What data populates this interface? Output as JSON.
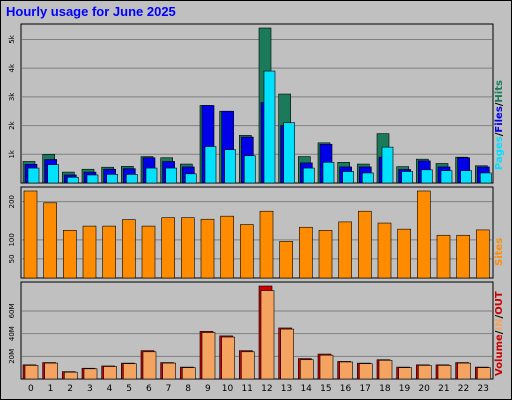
{
  "title": "Hourly usage for June 2025",
  "colors": {
    "background": "#c0c0c0",
    "plot_bg": "#c0c0c0",
    "grid": "#808080",
    "title": "#0000ff",
    "pages": "#00e0ff",
    "files": "#0000e8",
    "hits": "#1b7a5a",
    "sites": "#ff8c00",
    "volume_in": "#f4a460",
    "volume_out": "#cc0000",
    "axis_text": "#000000"
  },
  "chart_data": [
    {
      "type": "bar",
      "panel": "top",
      "categories": [
        "0",
        "1",
        "2",
        "3",
        "4",
        "5",
        "6",
        "7",
        "8",
        "9",
        "10",
        "11",
        "12",
        "13",
        "14",
        "15",
        "16",
        "17",
        "18",
        "19",
        "20",
        "21",
        "22",
        "23"
      ],
      "series": [
        {
          "name": "Hits",
          "values": [
            750,
            1000,
            380,
            480,
            550,
            580,
            920,
            880,
            660,
            2700,
            2500,
            1660,
            5400,
            3100,
            920,
            1400,
            720,
            660,
            1720,
            570,
            830,
            680,
            900,
            600
          ]
        },
        {
          "name": "Files",
          "values": [
            650,
            820,
            280,
            380,
            480,
            500,
            880,
            750,
            560,
            2700,
            2500,
            1600,
            2800,
            2000,
            700,
            1350,
            560,
            560,
            900,
            470,
            770,
            560,
            880,
            560
          ]
        },
        {
          "name": "Pages",
          "values": [
            520,
            640,
            200,
            280,
            300,
            300,
            520,
            520,
            320,
            1270,
            1160,
            950,
            3900,
            2100,
            520,
            720,
            400,
            350,
            1250,
            400,
            460,
            430,
            430,
            350
          ]
        }
      ],
      "ylabel": "Pages / Files / Hits",
      "yticks": [
        "1k",
        "2k",
        "3k",
        "4k",
        "5k"
      ],
      "ylim": [
        0,
        5400
      ]
    },
    {
      "type": "bar",
      "panel": "middle",
      "categories": [
        "0",
        "1",
        "2",
        "3",
        "4",
        "5",
        "6",
        "7",
        "8",
        "9",
        "10",
        "11",
        "12",
        "13",
        "14",
        "15",
        "16",
        "17",
        "18",
        "19",
        "20",
        "21",
        "22",
        "23"
      ],
      "series": [
        {
          "name": "Sites",
          "values": [
            228,
            197,
            125,
            136,
            136,
            153,
            136,
            158,
            158,
            154,
            162,
            140,
            175,
            96,
            133,
            125,
            147,
            175,
            144,
            128,
            228,
            112,
            112,
            126
          ]
        }
      ],
      "ylabel": "Sites",
      "yticks": [
        "50",
        "100",
        "200"
      ],
      "ylim": [
        0,
        228
      ]
    },
    {
      "type": "bar",
      "panel": "bottom",
      "categories": [
        "0",
        "1",
        "2",
        "3",
        "4",
        "5",
        "6",
        "7",
        "8",
        "9",
        "10",
        "11",
        "12",
        "13",
        "14",
        "15",
        "16",
        "17",
        "18",
        "19",
        "20",
        "21",
        "22",
        "23"
      ],
      "series": [
        {
          "name": "IN",
          "values": [
            12.0,
            14.0,
            6.0,
            9.0,
            11.0,
            13.5,
            24.0,
            14.0,
            10.0,
            41.0,
            37.0,
            24.0,
            78.0,
            44.0,
            17.0,
            21.0,
            15.0,
            13.5,
            16.5,
            10.0,
            12.0,
            12.0,
            14.0,
            10.0
          ]
        },
        {
          "name": "OUT",
          "values": [
            12.5,
            14.5,
            6.5,
            9.5,
            11.5,
            14.0,
            25.0,
            14.5,
            10.5,
            42.0,
            38.0,
            25.0,
            82.0,
            45.0,
            18.0,
            22.0,
            15.5,
            14.0,
            17.0,
            10.5,
            12.5,
            12.5,
            14.5,
            10.5
          ]
        }
      ],
      "ylabel": "Volume / IN / OUT",
      "yticks": [
        "20M",
        "40M",
        "60M"
      ],
      "ylim": [
        0,
        82
      ]
    }
  ],
  "side_labels": {
    "top": [
      {
        "text": "Pages",
        "color": "#00e0ff"
      },
      {
        "text": "/",
        "color": "#000000"
      },
      {
        "text": "Files",
        "color": "#0000e8"
      },
      {
        "text": "/",
        "color": "#000000"
      },
      {
        "text": "Hits",
        "color": "#1b7a5a"
      }
    ],
    "middle": [
      {
        "text": "Sites",
        "color": "#ff8c00"
      }
    ],
    "bottom": [
      {
        "text": "Volume",
        "color": "#cc0000"
      },
      {
        "text": "/",
        "color": "#000000"
      },
      {
        "text": "IN",
        "color": "#f4a460"
      },
      {
        "text": "/",
        "color": "#000000"
      },
      {
        "text": "OUT",
        "color": "#cc0000"
      }
    ]
  }
}
